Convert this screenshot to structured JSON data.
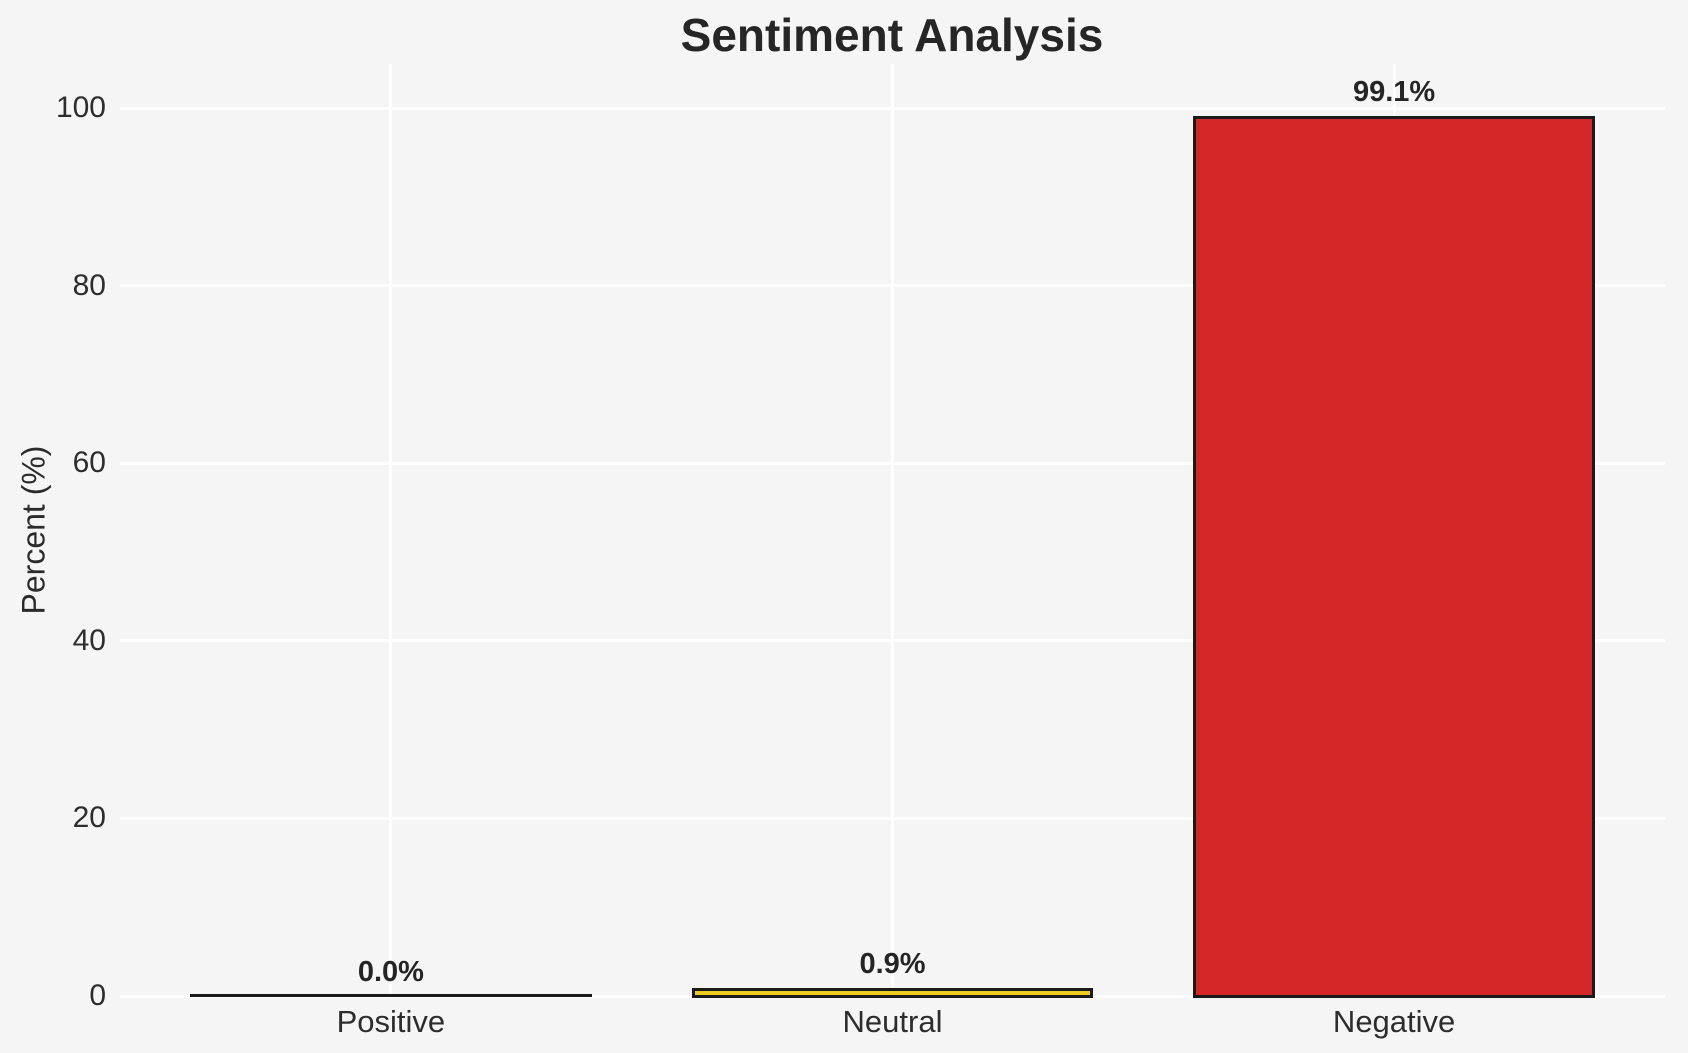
{
  "chart_data": {
    "type": "bar",
    "title": "Sentiment Analysis",
    "xlabel": "",
    "ylabel": "Percent (%)",
    "categories": [
      "Positive",
      "Neutral",
      "Negative"
    ],
    "values": [
      0.0,
      0.9,
      99.1
    ],
    "value_labels": [
      "0.0%",
      "0.9%",
      "99.1%"
    ],
    "bar_fill_colors": [
      null,
      "#efcb20",
      "#d62728"
    ],
    "bar_edge_color": "#1a1a1a",
    "yticks": [
      0,
      20,
      40,
      60,
      80,
      100
    ],
    "ylim": [
      0,
      105
    ],
    "grid": "on",
    "grid_color": "#ffffff",
    "background_color": "#f5f5f6",
    "legend_position": "none"
  }
}
